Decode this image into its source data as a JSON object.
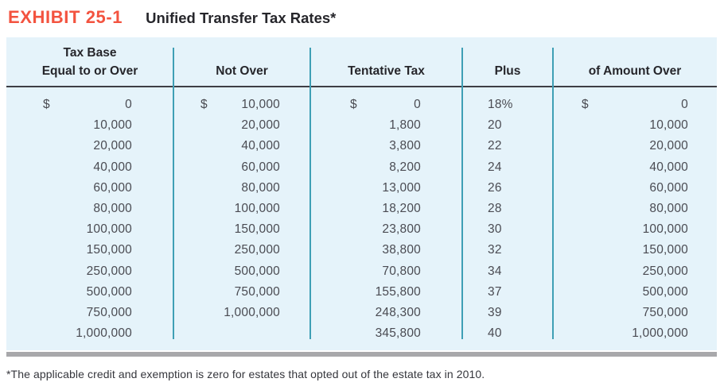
{
  "exhibit": {
    "label": "EXHIBIT 25-1",
    "title": "Unified Transfer Tax Rates*"
  },
  "table": {
    "headers": [
      {
        "lines": [
          "Tax Base",
          "Equal to or Over"
        ]
      },
      {
        "lines": [
          "Not Over"
        ]
      },
      {
        "lines": [
          "Tentative Tax"
        ]
      },
      {
        "lines": [
          "Plus"
        ]
      },
      {
        "lines": [
          "of Amount Over"
        ]
      }
    ],
    "rows": [
      [
        {
          "prefix": "$",
          "value": "0"
        },
        {
          "prefix": "$",
          "value": "10,000"
        },
        {
          "prefix": "$",
          "value": "0"
        },
        {
          "prefix": "",
          "value": "18%"
        },
        {
          "prefix": "$",
          "value": "0"
        }
      ],
      [
        {
          "prefix": "",
          "value": "10,000"
        },
        {
          "prefix": "",
          "value": "20,000"
        },
        {
          "prefix": "",
          "value": "1,800"
        },
        {
          "prefix": "",
          "value": "20"
        },
        {
          "prefix": "",
          "value": "10,000"
        }
      ],
      [
        {
          "prefix": "",
          "value": "20,000"
        },
        {
          "prefix": "",
          "value": "40,000"
        },
        {
          "prefix": "",
          "value": "3,800"
        },
        {
          "prefix": "",
          "value": "22"
        },
        {
          "prefix": "",
          "value": "20,000"
        }
      ],
      [
        {
          "prefix": "",
          "value": "40,000"
        },
        {
          "prefix": "",
          "value": "60,000"
        },
        {
          "prefix": "",
          "value": "8,200"
        },
        {
          "prefix": "",
          "value": "24"
        },
        {
          "prefix": "",
          "value": "40,000"
        }
      ],
      [
        {
          "prefix": "",
          "value": "60,000"
        },
        {
          "prefix": "",
          "value": "80,000"
        },
        {
          "prefix": "",
          "value": "13,000"
        },
        {
          "prefix": "",
          "value": "26"
        },
        {
          "prefix": "",
          "value": "60,000"
        }
      ],
      [
        {
          "prefix": "",
          "value": "80,000"
        },
        {
          "prefix": "",
          "value": "100,000"
        },
        {
          "prefix": "",
          "value": "18,200"
        },
        {
          "prefix": "",
          "value": "28"
        },
        {
          "prefix": "",
          "value": "80,000"
        }
      ],
      [
        {
          "prefix": "",
          "value": "100,000"
        },
        {
          "prefix": "",
          "value": "150,000"
        },
        {
          "prefix": "",
          "value": "23,800"
        },
        {
          "prefix": "",
          "value": "30"
        },
        {
          "prefix": "",
          "value": "100,000"
        }
      ],
      [
        {
          "prefix": "",
          "value": "150,000"
        },
        {
          "prefix": "",
          "value": "250,000"
        },
        {
          "prefix": "",
          "value": "38,800"
        },
        {
          "prefix": "",
          "value": "32"
        },
        {
          "prefix": "",
          "value": "150,000"
        }
      ],
      [
        {
          "prefix": "",
          "value": "250,000"
        },
        {
          "prefix": "",
          "value": "500,000"
        },
        {
          "prefix": "",
          "value": "70,800"
        },
        {
          "prefix": "",
          "value": "34"
        },
        {
          "prefix": "",
          "value": "250,000"
        }
      ],
      [
        {
          "prefix": "",
          "value": "500,000"
        },
        {
          "prefix": "",
          "value": "750,000"
        },
        {
          "prefix": "",
          "value": "155,800"
        },
        {
          "prefix": "",
          "value": "37"
        },
        {
          "prefix": "",
          "value": "500,000"
        }
      ],
      [
        {
          "prefix": "",
          "value": "750,000"
        },
        {
          "prefix": "",
          "value": "1,000,000"
        },
        {
          "prefix": "",
          "value": "248,300"
        },
        {
          "prefix": "",
          "value": "39"
        },
        {
          "prefix": "",
          "value": "750,000"
        }
      ],
      [
        {
          "prefix": "",
          "value": "1,000,000"
        },
        {
          "prefix": "",
          "value": ""
        },
        {
          "prefix": "",
          "value": "345,800"
        },
        {
          "prefix": "",
          "value": "40"
        },
        {
          "prefix": "",
          "value": "1,000,000"
        }
      ]
    ]
  },
  "footnote": "*The applicable credit and exemption is zero for estates that opted out of the estate tax in 2010.",
  "colors": {
    "accent": "#F3533F",
    "table_bg": "#E5F3FA",
    "divider": "#3F9FB5",
    "header_rule": "#3E3E44",
    "bottom_bar": "#A8A8AB",
    "heading_text": "#26262B",
    "body_text": "#4A4B52",
    "footnote_text": "#35363C"
  }
}
